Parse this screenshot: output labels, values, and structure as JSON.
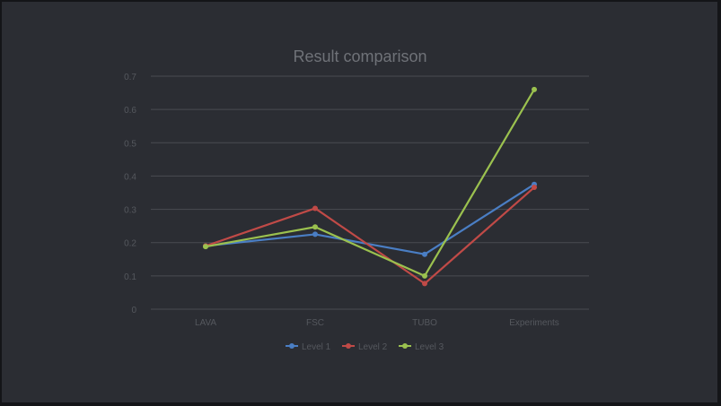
{
  "chart_data": {
    "type": "line",
    "title": "Result comparison",
    "categories": [
      "LAVA",
      "FSC",
      "TUBO",
      "Experiments"
    ],
    "ylim": [
      0,
      0.7
    ],
    "yticks": [
      0,
      0.1,
      0.2,
      0.3,
      0.4,
      0.5,
      0.6,
      0.7
    ],
    "grid": true,
    "legend_position": "bottom",
    "series": [
      {
        "name": "Level 1",
        "color": "#4a7ec4",
        "values": [
          0.19,
          0.225,
          0.165,
          0.375
        ]
      },
      {
        "name": "Level 2",
        "color": "#c04a47",
        "values": [
          0.19,
          0.303,
          0.077,
          0.366
        ]
      },
      {
        "name": "Level 3",
        "color": "#9bc14f",
        "values": [
          0.188,
          0.247,
          0.1,
          0.66
        ]
      }
    ]
  }
}
